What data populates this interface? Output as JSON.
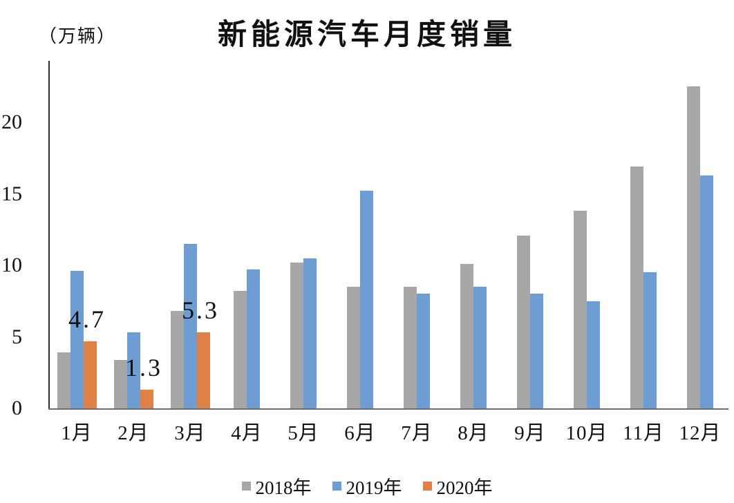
{
  "header": {
    "title": "新能源汽车月度销量",
    "unit_label": "（万辆）"
  },
  "chart_data": {
    "type": "bar",
    "title": "新能源汽车月度销量",
    "ylabel": "（万辆）",
    "categories": [
      "1月",
      "2月",
      "3月",
      "4月",
      "5月",
      "6月",
      "7月",
      "8月",
      "9月",
      "10月",
      "11月",
      "12月"
    ],
    "series": [
      {
        "name": "2018年",
        "color": "#a7a7a7",
        "values": [
          3.9,
          3.4,
          6.8,
          8.2,
          10.2,
          8.5,
          8.5,
          10.1,
          12.1,
          13.8,
          16.9,
          22.5
        ]
      },
      {
        "name": "2019年",
        "color": "#6e9dd3",
        "values": [
          9.6,
          5.3,
          11.5,
          9.7,
          10.5,
          15.2,
          8.0,
          8.5,
          8.0,
          7.5,
          9.5,
          16.3
        ]
      },
      {
        "name": "2020年",
        "color": "#e08145",
        "values": [
          4.7,
          1.3,
          5.3,
          null,
          null,
          null,
          null,
          null,
          null,
          null,
          null,
          null
        ],
        "data_labels": [
          "4.7",
          "1.3",
          "5.3"
        ]
      }
    ],
    "yticks": [
      0,
      5,
      10,
      15,
      20
    ],
    "ylim": [
      0,
      24.3
    ],
    "grid": false,
    "legend_position": "bottom"
  }
}
